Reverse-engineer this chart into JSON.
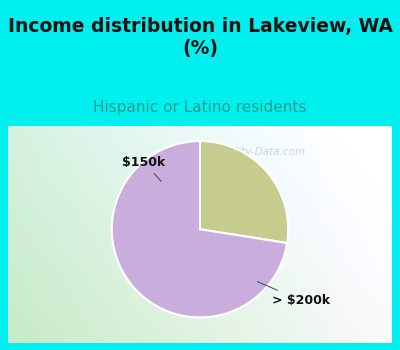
{
  "title": "Income distribution in Lakeview, WA\n(%)",
  "subtitle": "Hispanic or Latino residents",
  "slices": [
    0.275,
    0.725
  ],
  "labels": [
    "$150k",
    "> $200k"
  ],
  "colors": [
    "#c5cc8e",
    "#c9aedd"
  ],
  "start_angle": 90,
  "counterclock": false,
  "title_fontsize": 13.5,
  "subtitle_fontsize": 11,
  "title_color": "#111111",
  "subtitle_color": "#2a9d8f",
  "bg_color": "#00efef",
  "chart_bg_left": "#c8e8c8",
  "chart_bg_right": "#e8f4f8",
  "watermark": "City-Data.com",
  "watermark_color": "#aabbcc",
  "watermark_alpha": 0.6,
  "label_fontsize": 9,
  "label_color": "#111111",
  "wedge_edgecolor": "white",
  "wedge_linewidth": 1.5
}
